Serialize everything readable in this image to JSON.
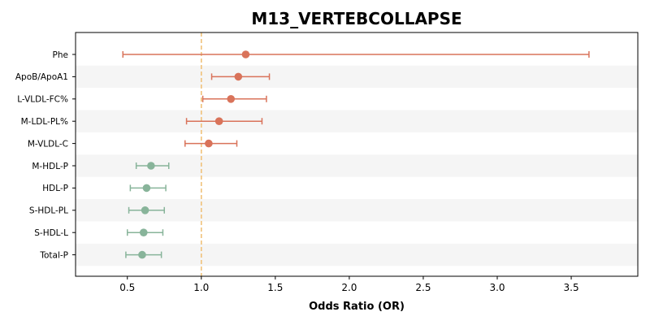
{
  "chart_data": {
    "type": "forest",
    "title": "M13_VERTEBCOLLAPSE",
    "xlabel": "Odds Ratio (OR)",
    "ylabel": "",
    "xlim": [
      0.15,
      3.95
    ],
    "xticks": [
      0.5,
      1.0,
      1.5,
      2.0,
      2.5,
      3.0,
      3.5
    ],
    "xtick_labels": [
      "0.5",
      "1.0",
      "1.5",
      "2.0",
      "2.5",
      "3.0",
      "3.5"
    ],
    "reference_line": 1.0,
    "alternating_row_shading": true,
    "categories": [
      "Phe",
      "ApoB/ApoA1",
      "L-VLDL-FC%",
      "M-LDL-PL%",
      "M-VLDL-C",
      "M-HDL-P",
      "HDL-P",
      "S-HDL-PL",
      "S-HDL-L",
      "Total-P"
    ],
    "or": [
      1.3,
      1.25,
      1.2,
      1.12,
      1.05,
      0.66,
      0.63,
      0.62,
      0.61,
      0.6
    ],
    "ci_lower": [
      0.47,
      1.07,
      1.01,
      0.9,
      0.89,
      0.56,
      0.52,
      0.51,
      0.5,
      0.49
    ],
    "ci_upper": [
      3.62,
      1.46,
      1.44,
      1.41,
      1.24,
      0.78,
      0.76,
      0.75,
      0.74,
      0.73
    ],
    "colors": {
      "risk": "#d9735a",
      "protective": "#88b49a",
      "reference": "#f0c27a",
      "band": "#f5f5f5"
    }
  }
}
